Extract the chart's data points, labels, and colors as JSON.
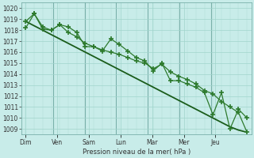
{
  "xlabel": "Pression niveau de la mer( hPa )",
  "background_color": "#c8ece9",
  "grid_color": "#a0d4cc",
  "grid_color_major": "#7ab0aa",
  "line_color_smooth": "#1a5c1a",
  "line_color_series": "#2d7a2d",
  "ylim": [
    1008.5,
    1020.5
  ],
  "x_labels": [
    "Dim",
    "Ven",
    "Sam",
    "Lun",
    "Mar",
    "Mer",
    "Jeu"
  ],
  "yticks": [
    1009,
    1010,
    1011,
    1012,
    1013,
    1014,
    1015,
    1016,
    1017,
    1018,
    1019,
    1020
  ],
  "smooth_line": [
    1018.8,
    1018.4,
    1018.0,
    1017.6,
    1017.2,
    1016.8,
    1016.4,
    1016.0,
    1015.6,
    1015.2,
    1014.8,
    1014.4,
    1014.0,
    1013.6,
    1013.2,
    1012.8,
    1012.4,
    1012.0,
    1011.6,
    1011.2,
    1010.8,
    1010.4,
    1010.0,
    1009.6,
    1009.2,
    1008.9,
    1008.7
  ],
  "series1": [
    1018.8,
    1019.5,
    1018.1,
    1018.0,
    1018.5,
    1018.3,
    1017.8,
    1016.5,
    1016.5,
    1016.1,
    1017.2,
    1016.7,
    1016.1,
    1015.5,
    1015.2,
    1014.3,
    1015.0,
    1013.4,
    1013.4,
    1013.1,
    1012.8,
    1012.3,
    1010.3,
    1012.3,
    1009.0,
    1010.8,
    1010.0
  ],
  "series2": [
    1018.2,
    1019.5,
    1018.3,
    1018.0,
    1018.5,
    1017.8,
    1017.4,
    1016.8,
    1016.5,
    1016.2,
    1016.0,
    1015.8,
    1015.5,
    1015.2,
    1015.0,
    1014.5,
    1014.9,
    1014.2,
    1013.8,
    1013.5,
    1013.1,
    1012.5,
    1012.2,
    1011.5,
    1011.0,
    1010.5,
    1008.7
  ],
  "n_points": 27
}
